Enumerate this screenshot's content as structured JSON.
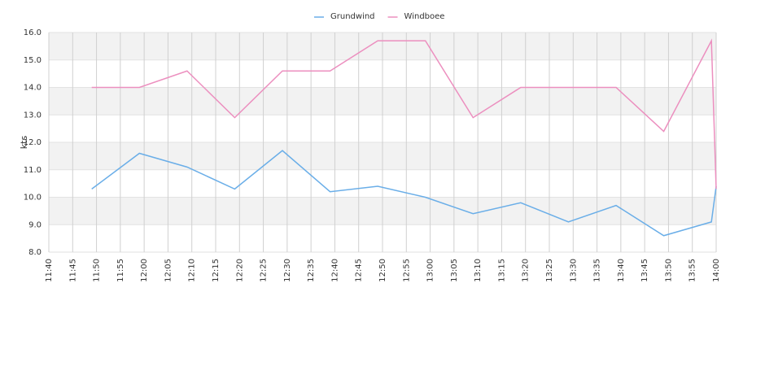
{
  "chart_data": {
    "type": "line",
    "ylabel": "kts",
    "x": [
      "11:49",
      "11:59",
      "12:09",
      "12:19",
      "12:29",
      "12:39",
      "12:49",
      "12:59",
      "13:09",
      "13:19",
      "13:29",
      "13:39",
      "13:49",
      "13:59",
      "14:00"
    ],
    "series": [
      {
        "name": "Grundwind",
        "color": "#6aaee8",
        "values": [
          10.3,
          11.6,
          11.1,
          10.3,
          11.7,
          10.2,
          10.4,
          10.0,
          9.4,
          9.8,
          9.1,
          9.7,
          8.6,
          9.1,
          10.4
        ]
      },
      {
        "name": "Windboee",
        "color": "#ec8fbf",
        "values": [
          14.0,
          14.0,
          14.6,
          12.9,
          14.6,
          14.6,
          15.7,
          15.7,
          12.9,
          14.0,
          14.0,
          14.0,
          12.4,
          15.7,
          10.3
        ]
      }
    ],
    "xlim": [
      "11:40",
      "14:00"
    ],
    "xticks": [
      "11:40",
      "11:45",
      "11:50",
      "11:55",
      "12:00",
      "12:05",
      "12:10",
      "12:15",
      "12:20",
      "12:25",
      "12:30",
      "12:35",
      "12:40",
      "12:45",
      "12:50",
      "12:55",
      "13:00",
      "13:05",
      "13:10",
      "13:15",
      "13:20",
      "13:25",
      "13:30",
      "13:35",
      "13:40",
      "13:45",
      "13:50",
      "13:55",
      "14:00"
    ],
    "ylim": [
      8,
      16
    ],
    "yticks": [
      {
        "value": 8,
        "label": "8.0"
      },
      {
        "value": 9,
        "label": "9.0"
      },
      {
        "value": 10,
        "label": "10.0"
      },
      {
        "value": 11,
        "label": "11.0"
      },
      {
        "value": 12,
        "label": "12.0"
      },
      {
        "value": 13,
        "label": "13.0"
      },
      {
        "value": 14,
        "label": "14.0"
      },
      {
        "value": 15,
        "label": "15.0"
      },
      {
        "value": 16,
        "label": "16.0"
      }
    ],
    "grid": true,
    "legend": "top"
  }
}
